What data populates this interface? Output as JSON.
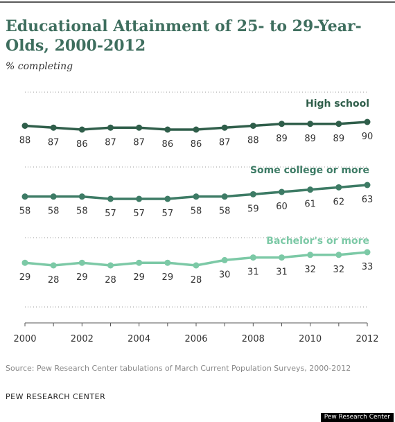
{
  "header": {
    "title": "Educational Attainment of 25- to 29-Year-Olds, 2000-2012",
    "subtitle": "% completing"
  },
  "footer": {
    "source": "Source: Pew Research Center tabulations of March Current Population Surveys, 2000-2012",
    "org": "PEW RESEARCH CENTER",
    "badge": "Pew Research Center"
  },
  "chart_data": {
    "type": "line",
    "title": "Educational Attainment of 25- to 29-Year-Olds, 2000-2012",
    "subtitle": "% completing",
    "x": [
      2000,
      2001,
      2002,
      2003,
      2004,
      2005,
      2006,
      2007,
      2008,
      2009,
      2010,
      2011,
      2012
    ],
    "x_ticks": [
      2000,
      2002,
      2004,
      2006,
      2008,
      2010,
      2012
    ],
    "grid": "horizontal dotted",
    "series": [
      {
        "name": "High school",
        "color": "#2f5e4a",
        "values": [
          88,
          87,
          86,
          87,
          87,
          86,
          86,
          87,
          88,
          89,
          89,
          89,
          90
        ]
      },
      {
        "name": "Some college or more",
        "color": "#3d7b65",
        "values": [
          58,
          58,
          58,
          57,
          57,
          57,
          58,
          58,
          59,
          60,
          61,
          62,
          63
        ]
      },
      {
        "name": "Bachelor's or more",
        "color": "#7cc9a6",
        "values": [
          29,
          28,
          29,
          28,
          29,
          29,
          28,
          30,
          31,
          31,
          32,
          32,
          33
        ]
      }
    ]
  }
}
